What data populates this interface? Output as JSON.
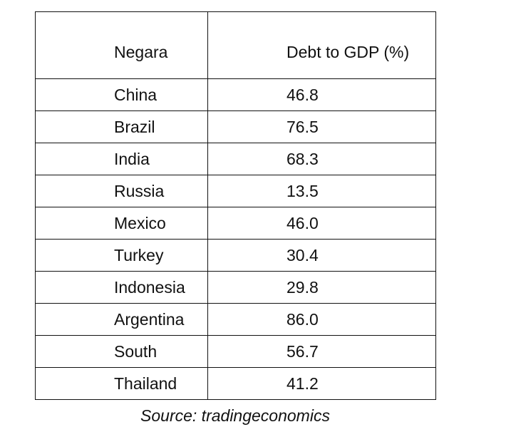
{
  "table": {
    "headers": {
      "country": "Negara",
      "value": "Debt to GDP (%)"
    },
    "rows": [
      {
        "country": "China",
        "value": "46.8"
      },
      {
        "country": "Brazil",
        "value": "76.5"
      },
      {
        "country": "India",
        "value": "68.3"
      },
      {
        "country": "Russia",
        "value": "13.5"
      },
      {
        "country": "Mexico",
        "value": "46.0"
      },
      {
        "country": "Turkey",
        "value": "30.4"
      },
      {
        "country": "Indonesia",
        "value": "29.8"
      },
      {
        "country": "Argentina",
        "value": "86.0"
      },
      {
        "country": "South",
        "value": "56.7"
      },
      {
        "country": "Thailand",
        "value": "41.2"
      }
    ]
  },
  "caption": {
    "source": "Source: tradingeconomics"
  }
}
